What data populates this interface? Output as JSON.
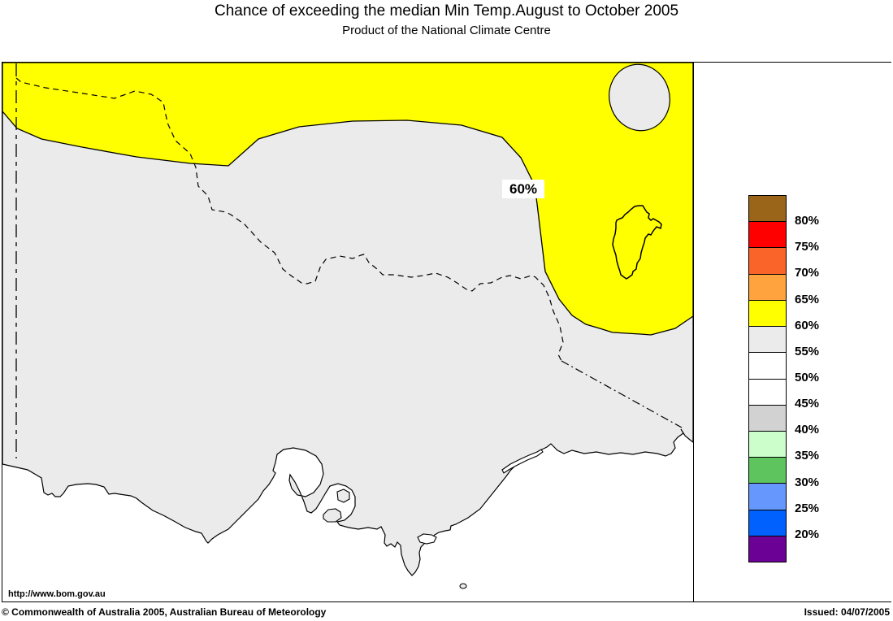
{
  "header": {
    "title": "Chance of exceeding the median Min Temp.August to October 2005",
    "subtitle": "Product of the National Climate Centre"
  },
  "map": {
    "contour_label": "60%",
    "url_label": "http://www.bom.gov.au",
    "colors": {
      "sea": "#FFFFFF",
      "land": "#EBEBEB",
      "zone_60_65": "#FFFF00",
      "coast_line": "#000000"
    },
    "zones": [
      {
        "value": "60-65%",
        "color": "#FFFF00",
        "area": "northern Victoria and northeast / east of contour"
      },
      {
        "value": "55-60%",
        "color": "#EBEBEB",
        "area": "central, western and southern Victoria"
      }
    ]
  },
  "legend": {
    "items": [
      {
        "color": "#9A6518",
        "label": "80%"
      },
      {
        "color": "#FE0000",
        "label": "75%"
      },
      {
        "color": "#FB6428",
        "label": "70%"
      },
      {
        "color": "#FEA33D",
        "label": "65%"
      },
      {
        "color": "#FFFF00",
        "label": "60%"
      },
      {
        "color": "#EBEBEB",
        "label": "55%"
      },
      {
        "color": "#FFFFFF",
        "label": "50%"
      },
      {
        "color": "#FFFFFF",
        "label": "45%"
      },
      {
        "color": "#D2D2D2",
        "label": "40%"
      },
      {
        "color": "#CCFECC",
        "label": "35%"
      },
      {
        "color": "#5EC45E",
        "label": "30%"
      },
      {
        "color": "#6597FC",
        "label": "25%"
      },
      {
        "color": "#0161FE",
        "label": "20%"
      },
      {
        "color": "#6B0295",
        "label": ""
      }
    ]
  },
  "footer": {
    "copyright": "© Commonwealth of Australia 2005, Australian Bureau of Meteorology",
    "issued": "Issued: 04/07/2005"
  }
}
